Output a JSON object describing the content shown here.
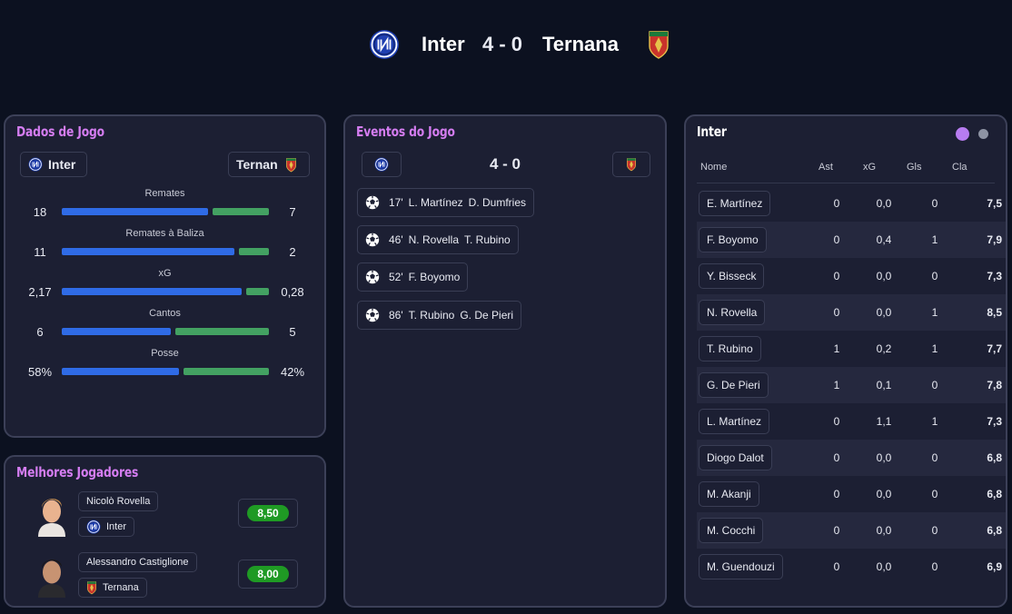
{
  "header": {
    "home_team": "Inter",
    "away_team": "Ternana",
    "score": "4 - 0"
  },
  "stats_panel": {
    "title": "Dados de Jogo",
    "home_team": "Inter",
    "away_team": "Ternan",
    "rows": [
      {
        "label": "Remates",
        "home": "18",
        "away": "7",
        "home_share": 0.72
      },
      {
        "label": "Remates à Baliza",
        "home": "11",
        "away": "2",
        "home_share": 0.85
      },
      {
        "label": "xG",
        "home": "2,17",
        "away": "0,28",
        "home_share": 0.89
      },
      {
        "label": "Cantos",
        "home": "6",
        "away": "5",
        "home_share": 0.54
      },
      {
        "label": "Posse",
        "home": "58%",
        "away": "42%",
        "home_share": 0.58
      }
    ]
  },
  "best_players": {
    "title": "Melhores Jogadores",
    "players": [
      {
        "name": "Nicolò Rovella",
        "team": "Inter",
        "team_crest": "inter-crest-icon",
        "rating": "8,50"
      },
      {
        "name": "Alessandro Castiglione",
        "team": "Ternana",
        "team_crest": "ternana-crest-icon",
        "rating": "8,00"
      }
    ]
  },
  "events": {
    "title": "Eventos do Jogo",
    "score": "4 - 0",
    "items": [
      {
        "minute": "17'",
        "scorer": "L. Martínez",
        "assist": "D. Dumfries"
      },
      {
        "minute": "46'",
        "scorer": "N. Rovella",
        "assist": "T. Rubino"
      },
      {
        "minute": "52'",
        "scorer": "F. Boyomo",
        "assist": ""
      },
      {
        "minute": "86'",
        "scorer": "T. Rubino",
        "assist": "G. De Pieri"
      }
    ]
  },
  "ratings": {
    "title": "Inter",
    "columns": {
      "name": "Nome",
      "ast": "Ast",
      "xg": "xG",
      "gls": "Gls",
      "cla": "Cla"
    },
    "rows": [
      {
        "name": "E. Martínez",
        "ast": "0",
        "xg": "0,0",
        "gls": "0",
        "cla": "7,5"
      },
      {
        "name": "F. Boyomo",
        "ast": "0",
        "xg": "0,4",
        "gls": "1",
        "cla": "7,9"
      },
      {
        "name": "Y. Bisseck",
        "ast": "0",
        "xg": "0,0",
        "gls": "0",
        "cla": "7,3"
      },
      {
        "name": "N. Rovella",
        "ast": "0",
        "xg": "0,0",
        "gls": "1",
        "cla": "8,5"
      },
      {
        "name": "T. Rubino",
        "ast": "1",
        "xg": "0,2",
        "gls": "1",
        "cla": "7,7"
      },
      {
        "name": "G. De Pieri",
        "ast": "1",
        "xg": "0,1",
        "gls": "0",
        "cla": "7,8"
      },
      {
        "name": "L. Martínez",
        "ast": "0",
        "xg": "1,1",
        "gls": "1",
        "cla": "7,3"
      },
      {
        "name": "Diogo Dalot",
        "ast": "0",
        "xg": "0,0",
        "gls": "0",
        "cla": "6,8"
      },
      {
        "name": "M. Akanji",
        "ast": "0",
        "xg": "0,0",
        "gls": "0",
        "cla": "6,8"
      },
      {
        "name": "M. Cocchi",
        "ast": "0",
        "xg": "0,0",
        "gls": "0",
        "cla": "6,8"
      },
      {
        "name": "M. Guendouzi",
        "ast": "0",
        "xg": "0,0",
        "gls": "0",
        "cla": "6,9"
      }
    ]
  },
  "colors": {
    "background": "#0c1120",
    "panel": "#1c1f33",
    "accent_title": "#d57df2",
    "home_bar": "#2f6be6",
    "away_bar": "#43a162",
    "rating_badge": "#1f9a24"
  },
  "icons": [
    "inter-crest-icon",
    "ternana-crest-icon",
    "soccer-ball-icon",
    "player-avatar"
  ]
}
